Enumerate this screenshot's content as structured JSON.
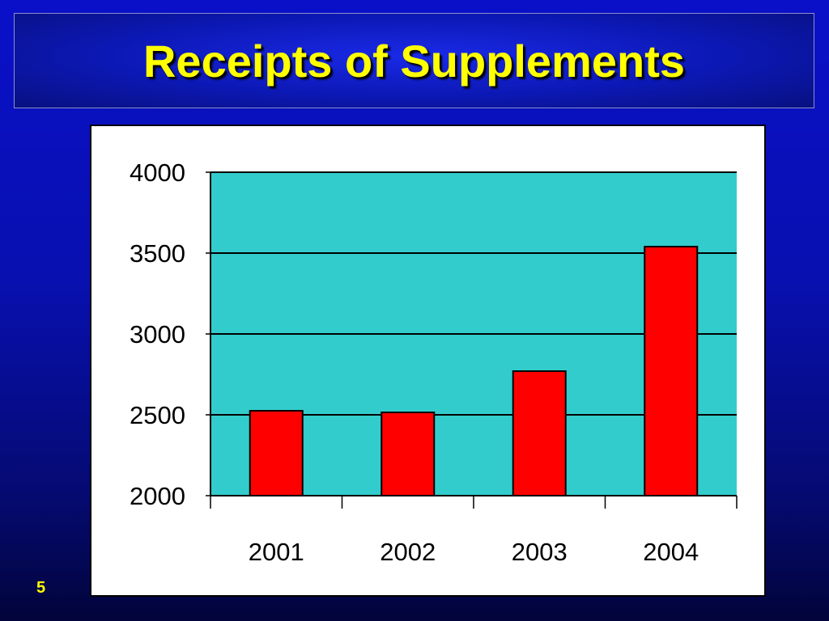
{
  "slide": {
    "title": "Receipts of Supplements",
    "page_number": "5"
  },
  "colors": {
    "background": "#0810b0",
    "title_text": "#ffff00",
    "plot_area": "#33cccc",
    "bar_fill": "#ff0000",
    "bar_stroke": "#000000"
  },
  "chart_data": {
    "type": "bar",
    "categories": [
      "2001",
      "2002",
      "2003",
      "2004"
    ],
    "values": [
      2525,
      2515,
      2770,
      3540
    ],
    "ylim": [
      2000,
      4000
    ],
    "yticks": [
      2000,
      2500,
      3000,
      3500,
      4000
    ],
    "grid": true,
    "legend": "none"
  }
}
